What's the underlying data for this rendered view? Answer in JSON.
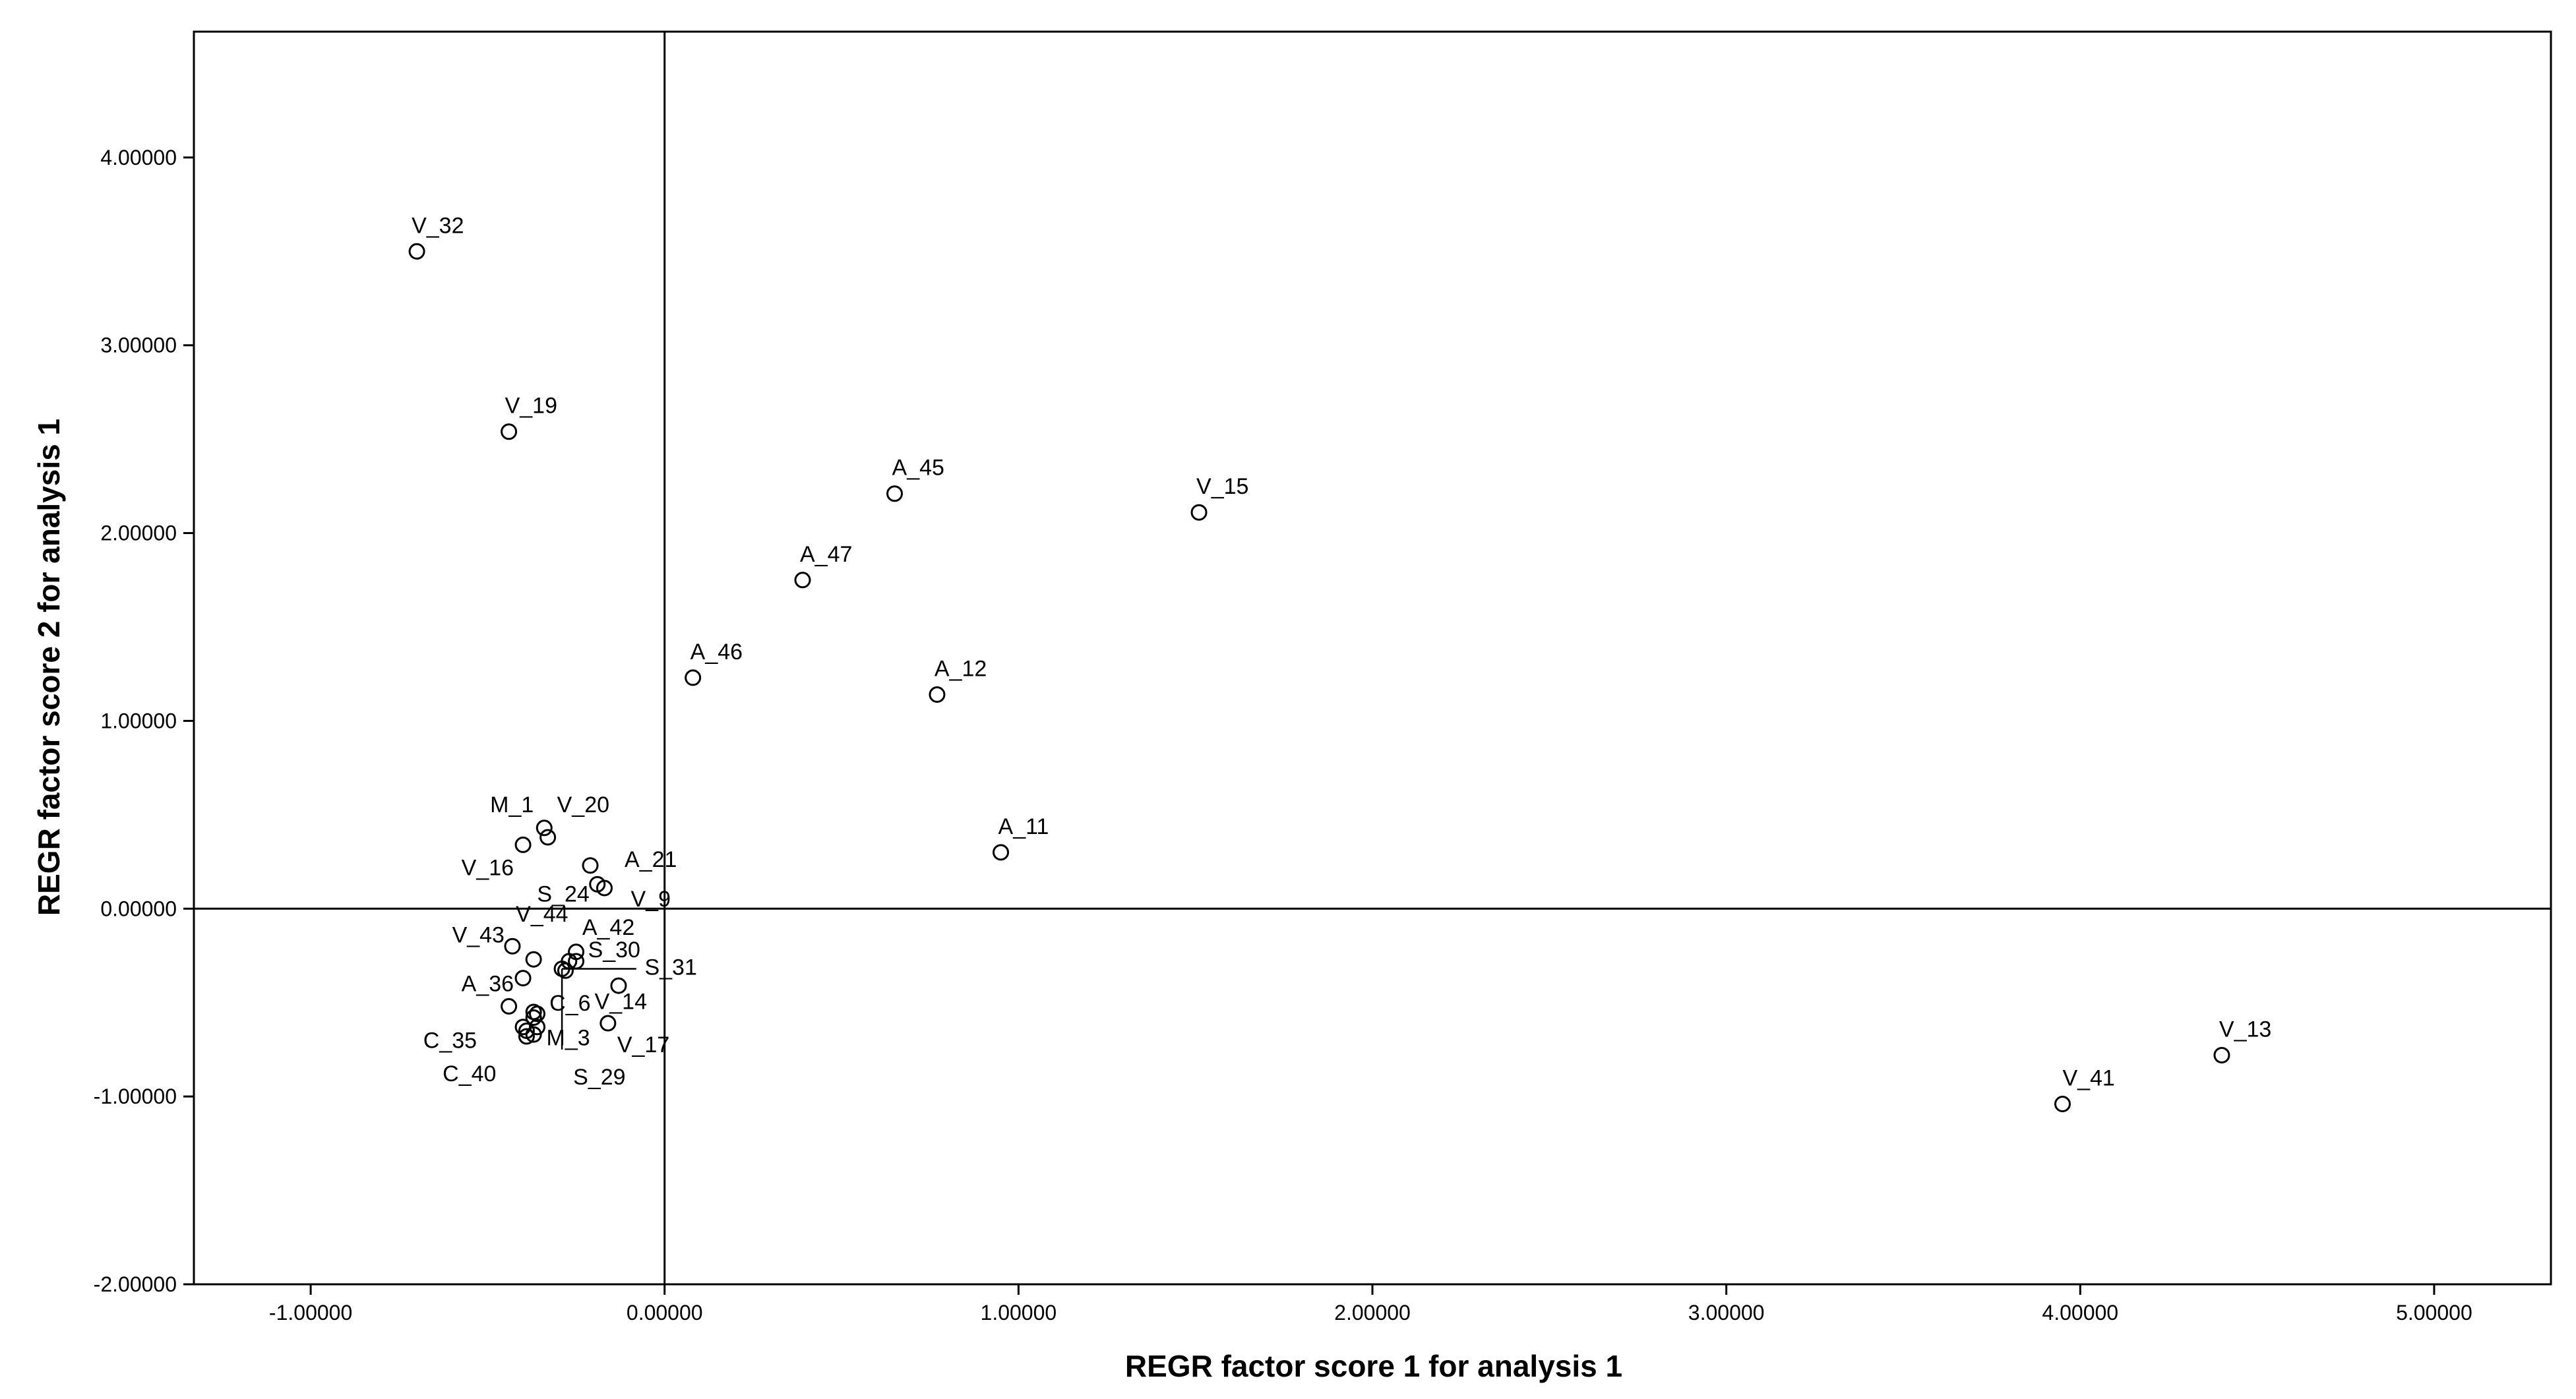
{
  "chart_data": {
    "type": "scatter",
    "xlabel": "REGR factor score   1 for analysis 1",
    "ylabel": "REGR factor score   2 for analysis 1",
    "xlim": [
      -1.33,
      5.33
    ],
    "ylim": [
      -2.0,
      4.67
    ],
    "x_ticks": [
      -1.0,
      0.0,
      1.0,
      2.0,
      3.0,
      4.0,
      5.0
    ],
    "y_ticks": [
      -2.0,
      -1.0,
      0.0,
      1.0,
      2.0,
      3.0,
      4.0
    ],
    "x_tick_labels": [
      "-1.00000",
      "0.00000",
      "1.00000",
      "2.00000",
      "3.00000",
      "4.00000",
      "5.00000"
    ],
    "y_tick_labels": [
      "-2.00000",
      "-1.00000",
      "0.00000",
      "1.00000",
      "2.00000",
      "3.00000",
      "4.00000"
    ],
    "reference_lines": {
      "x": 0.0,
      "y": 0.0
    },
    "grid": false,
    "legend": "none",
    "colors": {
      "background": "#ffffff",
      "ink": "#000000"
    },
    "points": [
      {
        "label": "V_32",
        "x": -0.7,
        "y": 3.5
      },
      {
        "label": "V_19",
        "x": -0.44,
        "y": 2.54
      },
      {
        "label": "A_45",
        "x": 0.65,
        "y": 2.21
      },
      {
        "label": "V_15",
        "x": 1.51,
        "y": 2.11
      },
      {
        "label": "A_47",
        "x": 0.39,
        "y": 1.75
      },
      {
        "label": "A_46",
        "x": 0.08,
        "y": 1.23
      },
      {
        "label": "A_12",
        "x": 0.77,
        "y": 1.14
      },
      {
        "label": "A_11",
        "x": 0.95,
        "y": 0.3
      },
      {
        "label": "M_1",
        "x": -0.34,
        "y": 0.43
      },
      {
        "label": "V_20",
        "x": -0.33,
        "y": 0.38
      },
      {
        "label": "V_16",
        "x": -0.4,
        "y": 0.34
      },
      {
        "label": "A_21",
        "x": -0.21,
        "y": 0.23
      },
      {
        "label": "S_24",
        "x": -0.19,
        "y": 0.13
      },
      {
        "label": "V_9",
        "x": -0.17,
        "y": 0.11
      },
      {
        "label": "V_44",
        "x": -0.25,
        "y": -0.23
      },
      {
        "label": "A_42",
        "x": -0.27,
        "y": -0.28
      },
      {
        "label": "V_43",
        "x": -0.43,
        "y": -0.2
      },
      {
        "label": "S_30",
        "x": -0.25,
        "y": -0.28
      },
      {
        "label": "",
        "x": -0.37,
        "y": -0.27
      },
      {
        "label": "S_31",
        "x": -0.28,
        "y": -0.33
      },
      {
        "label": "",
        "x": -0.29,
        "y": -0.32
      },
      {
        "label": "A_36",
        "x": -0.4,
        "y": -0.37
      },
      {
        "label": "",
        "x": -0.13,
        "y": -0.41
      },
      {
        "label": "V_14",
        "x": -0.44,
        "y": -0.52
      },
      {
        "label": "C_6",
        "x": -0.37,
        "y": -0.55
      },
      {
        "label": "",
        "x": -0.36,
        "y": -0.56
      },
      {
        "label": "",
        "x": -0.37,
        "y": -0.58
      },
      {
        "label": "V_17",
        "x": -0.16,
        "y": -0.61
      },
      {
        "label": "C_35",
        "x": -0.4,
        "y": -0.63
      },
      {
        "label": "M_3",
        "x": -0.36,
        "y": -0.63
      },
      {
        "label": "",
        "x": -0.39,
        "y": -0.65
      },
      {
        "label": "C_40",
        "x": -0.39,
        "y": -0.68
      },
      {
        "label": "S_29",
        "x": -0.37,
        "y": -0.67
      },
      {
        "label": "V_41",
        "x": 3.95,
        "y": -1.04
      },
      {
        "label": "V_13",
        "x": 4.4,
        "y": -0.78
      }
    ]
  }
}
